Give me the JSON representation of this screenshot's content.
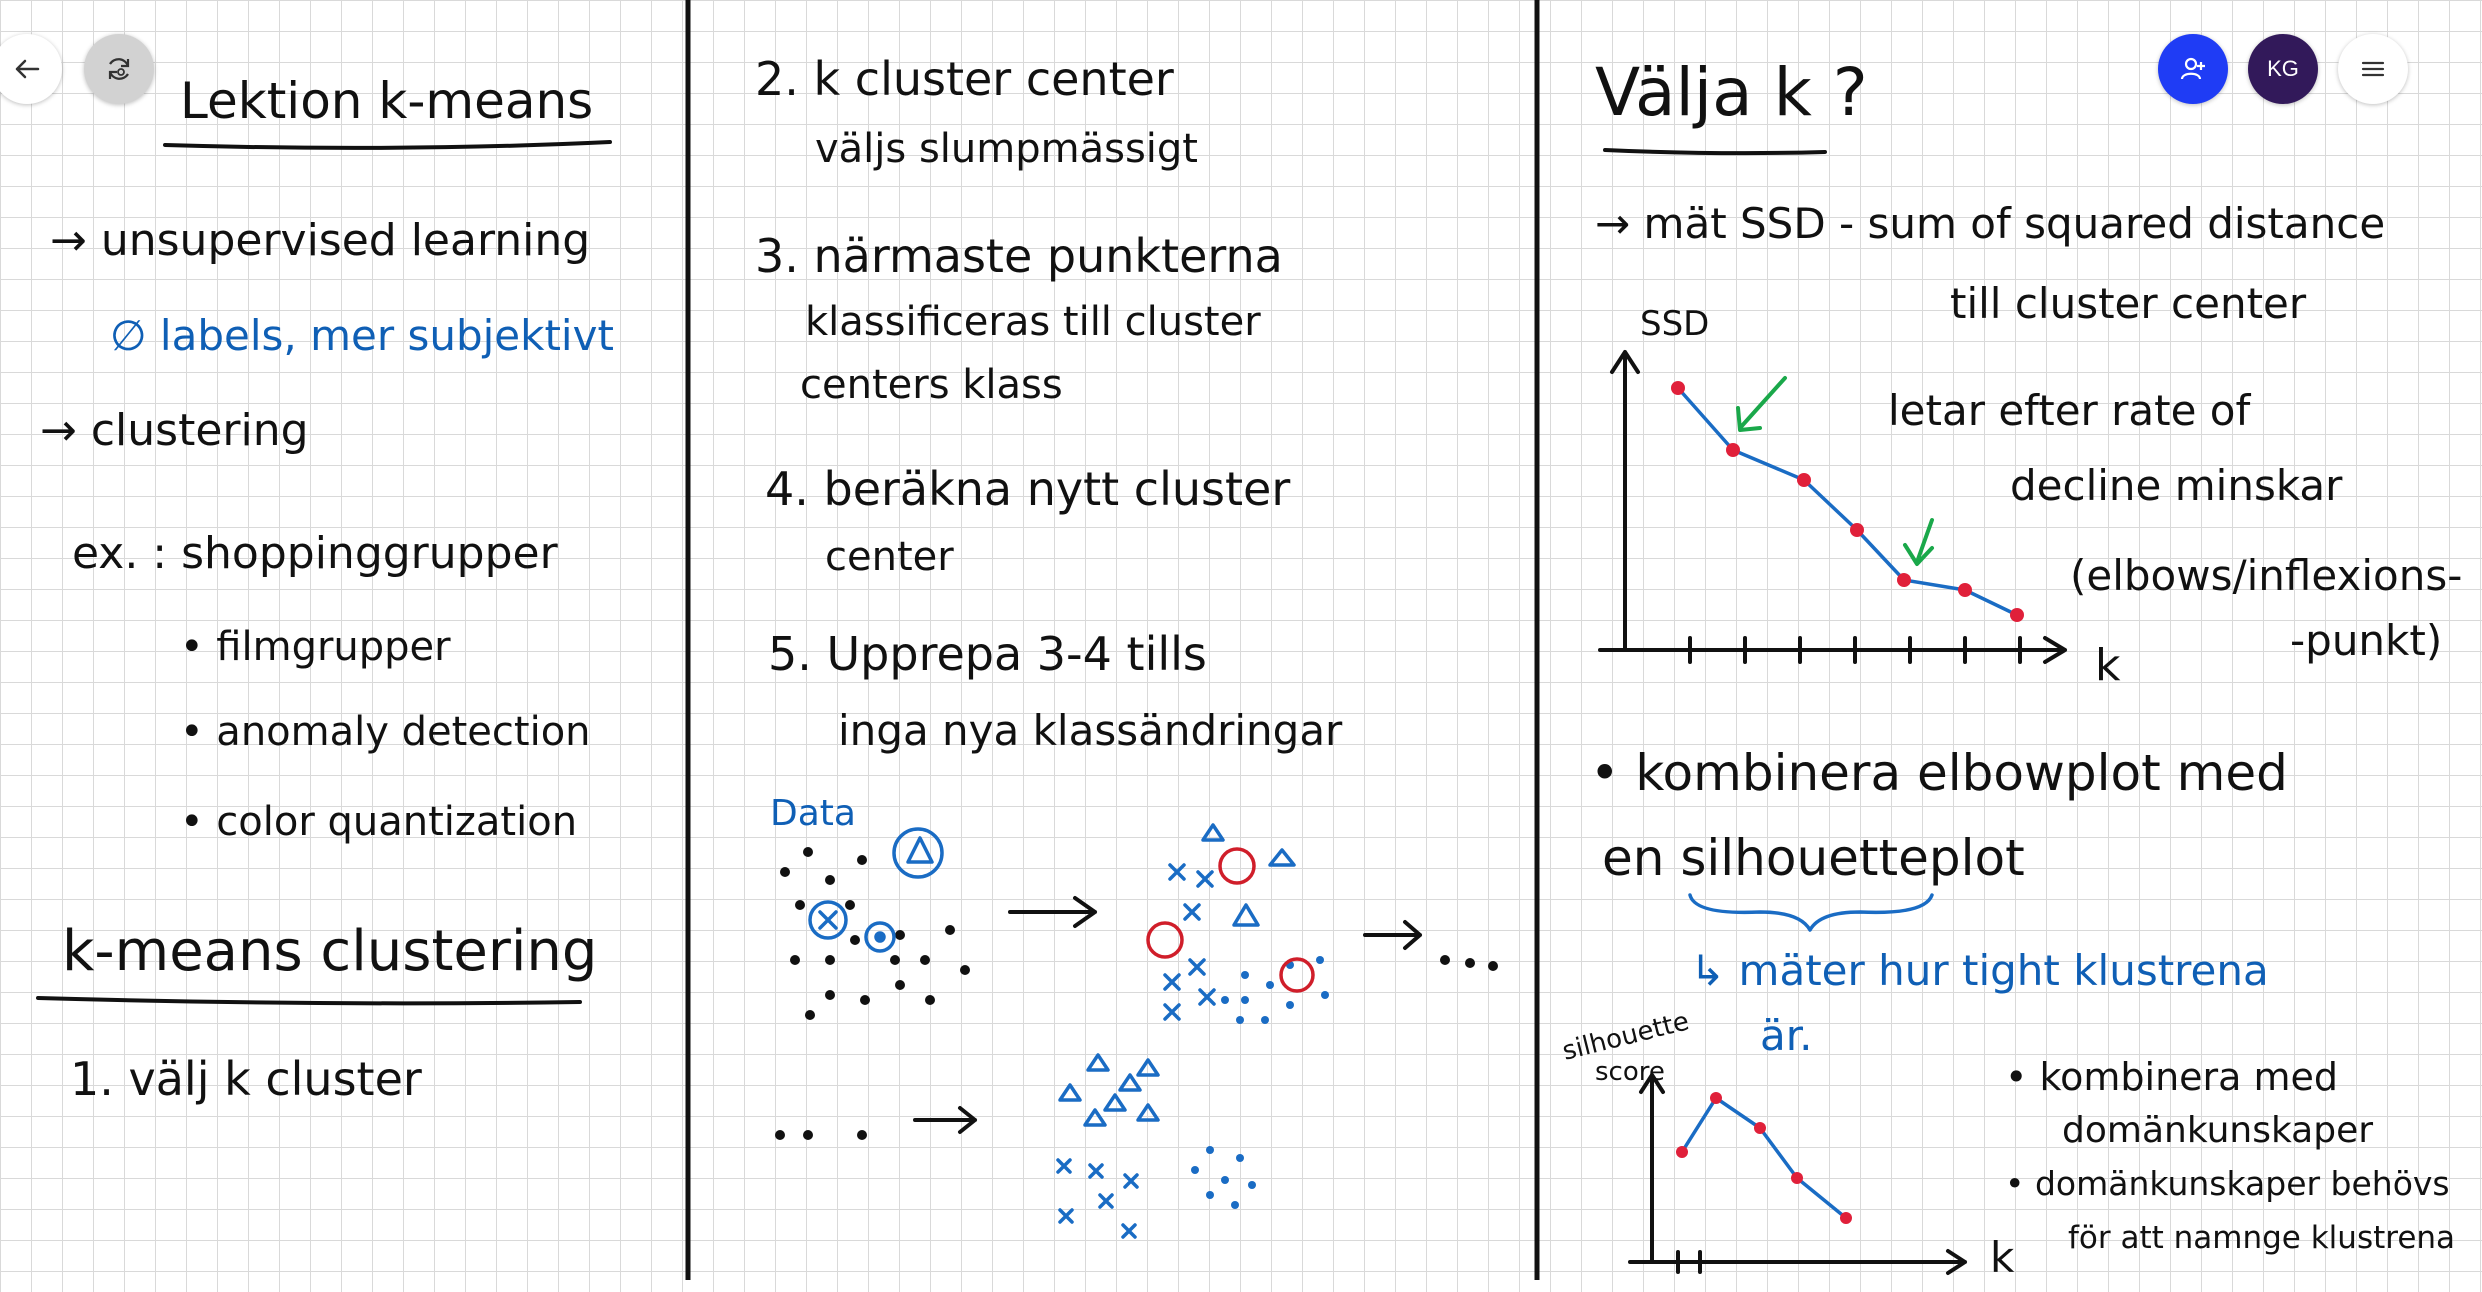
{
  "toolbar": {
    "back_icon": "arrow-left-icon",
    "sync_icon": "sync-icon",
    "invite_icon": "add-person-icon",
    "invite_color": "#1f3cf5",
    "avatar_initials": "KG",
    "avatar_color": "#32195a",
    "menu_icon": "hamburger-menu-icon"
  },
  "colors": {
    "ink_black": "#111111",
    "ink_blue": "#0f5fb5",
    "ink_red": "#d01e2a",
    "ink_green": "#1aa84a",
    "grid": "#d9d9d9"
  },
  "notes": {
    "col1": {
      "title": "Lektion k-means",
      "line1": "→ unsupervised learning",
      "line2": "∅ labels, mer subjektivt",
      "line3": "→ clustering",
      "ex_label": "ex. : shoppinggrupper",
      "bullet1": "• filmgrupper",
      "bullet2": "• anomaly detection",
      "bullet3": "• color quantization",
      "heading2": "k-means clustering",
      "step1": "1. välj k cluster"
    },
    "col2": {
      "step2a": "2. k cluster center",
      "step2b": "väljs slumpmässigt",
      "step3a": "3. närmaste punkterna",
      "step3b": "klassificeras till cluster",
      "step3c": "centers klass",
      "step4a": "4. beräkna nytt cluster",
      "step4b": "center",
      "step5a": "5. Upprepa 3-4 tills",
      "step5b": "inga nya klassändringar",
      "data_label": "Data"
    },
    "col3": {
      "title": "Välja k ?",
      "ssd_line1": "→ mät SSD - sum of squared distance",
      "ssd_line2": "till cluster center",
      "ssd_axis": "SSD",
      "k_axis": "k",
      "annot1": "letar efter rate of",
      "annot2": "decline minskar",
      "annot3": "(elbows/inflexions-",
      "annot4": "-punkt)",
      "combine1": "• kombinera elbowplot med",
      "combine2": "en silhouetteplot",
      "measure": "↳ mäter hur tight klustrena",
      "measure2": "är.",
      "sil_axis1": "silhouette",
      "sil_axis2": "score",
      "sil_k": "k",
      "note1a": "• kombinera med",
      "note1b": "domänkunskaper",
      "note2a": "• domänkunskaper behövs",
      "note2b": "för att namnge klustrena"
    }
  }
}
